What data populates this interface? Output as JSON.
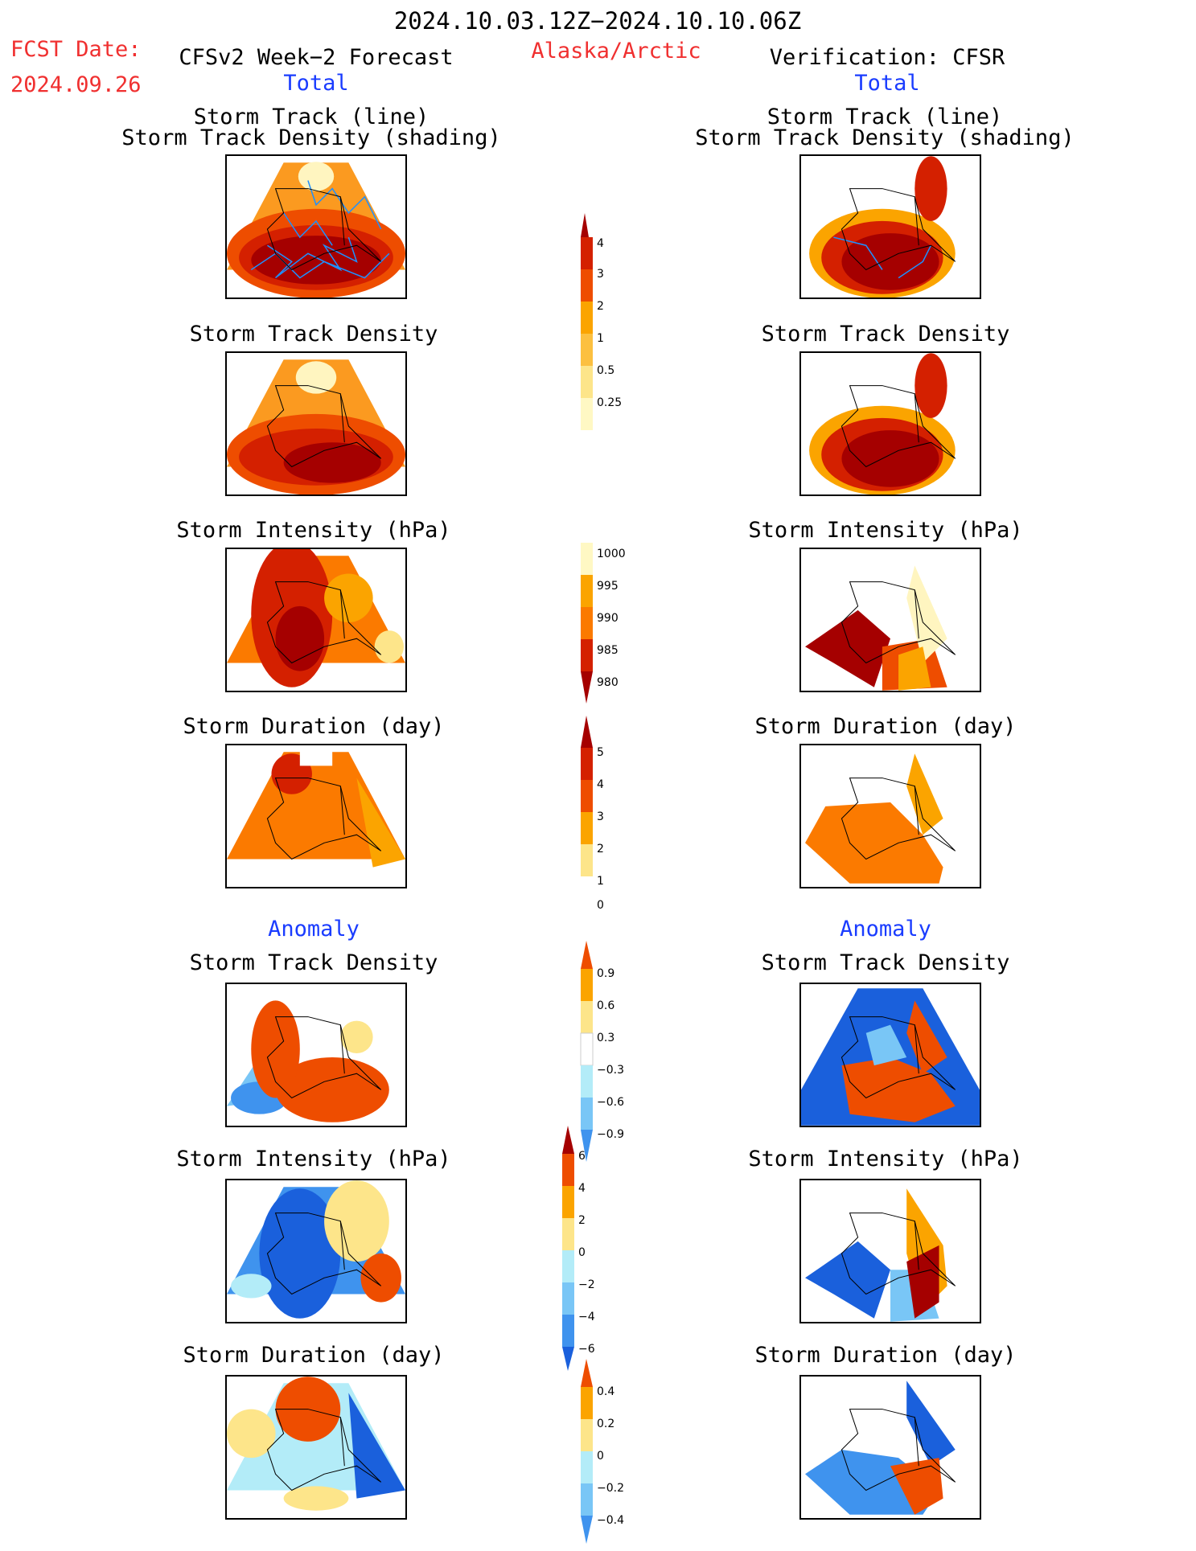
{
  "header": {
    "time_range": "2024.10.03.12Z−2024.10.10.06Z",
    "fcst_label": "FCST Date:",
    "fcst_date": "2024.09.26",
    "region": "Alaska/Arctic",
    "forecast_title": "CFSv2 Week−2 Forecast",
    "verification_title": "Verification: CFSR"
  },
  "sections": {
    "total": "Total",
    "anomaly": "Anomaly"
  },
  "titles": {
    "track_line": "Storm Track (line)",
    "track_shading": "Storm Track Density (shading)",
    "density": "Storm Track Density",
    "intensity": "Storm Intensity (hPa)",
    "duration": "Storm Duration (day)"
  },
  "colorbars": {
    "density_total": [
      "0.25",
      "0.5",
      "1",
      "2",
      "3",
      "4"
    ],
    "intensity_total": [
      "980",
      "985",
      "990",
      "995",
      "1000"
    ],
    "duration_total": [
      "0",
      "1",
      "2",
      "3",
      "4",
      "5"
    ],
    "density_anom": [
      "0.9",
      "0.6",
      "0.3",
      "−0.3",
      "−0.6",
      "−0.9"
    ],
    "intensity_anom": [
      "6",
      "4",
      "2",
      "0",
      "−2",
      "−4",
      "−6"
    ],
    "duration_anom": [
      "0.4",
      "0.2",
      "0",
      "−0.2",
      "−0.4"
    ]
  },
  "colors": {
    "darkred": "#a50000",
    "red": "#d42000",
    "redorange": "#ee4d00",
    "orange": "#fb7a00",
    "lightorange": "#fba400",
    "gold": "#fcc040",
    "yellow": "#fde58a",
    "paleyellow": "#fff8c4",
    "lightblue": "#b3ecf8",
    "skyblue": "#79c6f6",
    "midblue": "#3f93ee",
    "blue": "#1a60dc",
    "track": "#1e90ff"
  }
}
